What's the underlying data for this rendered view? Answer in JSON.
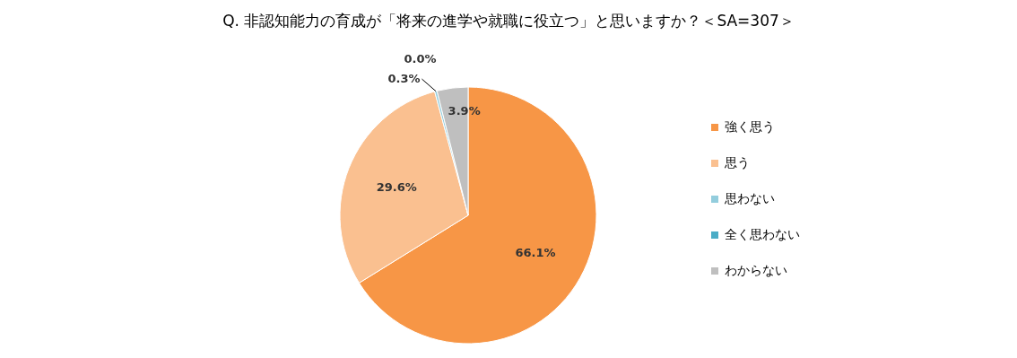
{
  "chart_data": {
    "type": "pie",
    "title": "Q. 非認知能力の育成が「将来の進学や就職に役立つ」と思いますか？＜SA=307＞",
    "categories": [
      "強く思う",
      "思う",
      "思わない",
      "全く思わない",
      "わからない"
    ],
    "values": [
      66.1,
      29.6,
      0.3,
      0.0,
      3.9
    ],
    "colors": [
      "#f79646",
      "#fac090",
      "#93cddd",
      "#4bacc6",
      "#bfbfbf"
    ],
    "value_labels": [
      "66.1%",
      "29.6%",
      "0.3%",
      "0.0%",
      "3.9%"
    ],
    "legend": "right"
  }
}
